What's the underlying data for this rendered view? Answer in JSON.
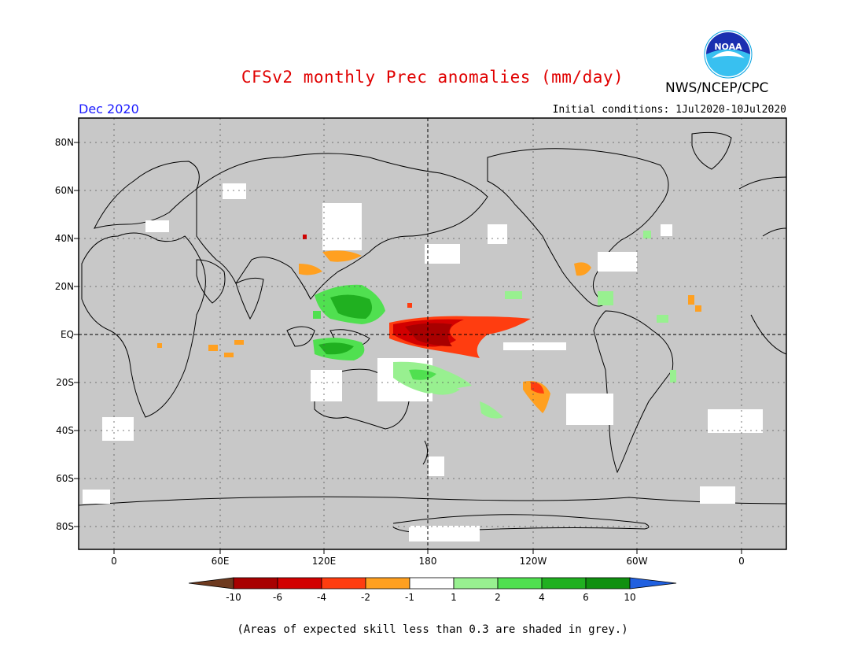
{
  "header": {
    "title": "CFSv2 monthly Prec anomalies (mm/day)",
    "org": "NWS/NCEP/CPC",
    "month": "Dec 2020",
    "init": "Initial conditions: 1Jul2020-10Jul2020",
    "logo_text": "NOAA"
  },
  "map": {
    "projection": "cylindrical equidistant",
    "lon_range": [
      -20,
      380
    ],
    "lat_range": [
      -90,
      90
    ],
    "lat_labels": [
      "80N",
      "60N",
      "40N",
      "20N",
      "EQ",
      "20S",
      "40S",
      "60S",
      "80S"
    ],
    "lon_labels": [
      "0",
      "60E",
      "120E",
      "180",
      "120W",
      "60W",
      "0"
    ],
    "background_color": "#c8c8c8",
    "low_skill_color": "#c8c8c8"
  },
  "legend": {
    "tick_labels": [
      "-10",
      "-6",
      "-4",
      "-2",
      "-1",
      "1",
      "2",
      "4",
      "6",
      "10"
    ],
    "colors": [
      "#6e3a1f",
      "#a80000",
      "#d20000",
      "#ff3d10",
      "#ffa020",
      "#ffffff",
      "#98f090",
      "#50e050",
      "#20b020",
      "#109010",
      "#2060e0"
    ]
  },
  "footnote": "(Areas of expected skill less than 0.3 are shaded in grey.)"
}
